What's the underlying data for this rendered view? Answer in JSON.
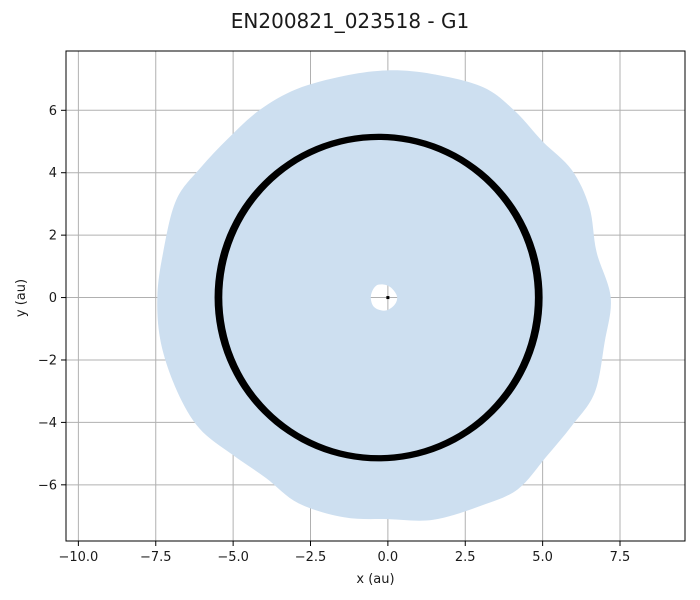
{
  "chart_data": {
    "type": "scatter",
    "title": "EN200821_023518 - G1",
    "xlabel": "x (au)",
    "ylabel": "y (au)",
    "xlim": [
      -10.4,
      9.6
    ],
    "ylim": [
      -7.8,
      7.9
    ],
    "x_ticks": [
      -10.0,
      -7.5,
      -5.0,
      -2.5,
      0.0,
      2.5,
      5.0,
      7.5
    ],
    "y_ticks": [
      -6,
      -4,
      -2,
      0,
      2,
      4,
      6
    ],
    "x_tick_labels": [
      "−10.0",
      "−7.5",
      "−5.0",
      "−2.5",
      "0.0",
      "2.5",
      "5.0",
      "7.5"
    ],
    "y_tick_labels": [
      "−6",
      "−4",
      "−2",
      "0",
      "2",
      "4",
      "6"
    ],
    "grid": true,
    "colors": {
      "disk": "#cddff0",
      "orbit": "#000000",
      "grid": "#b0b0b0"
    },
    "series": [
      {
        "kind": "scattered-disk",
        "color": "#cddff0",
        "boundary": [
          [
            7.2,
            0.0
          ],
          [
            6.74,
            1.47
          ],
          [
            6.51,
            2.9
          ],
          [
            5.94,
            4.09
          ],
          [
            5.0,
            5.0
          ],
          [
            4.1,
            5.98
          ],
          [
            3.08,
            6.74
          ],
          [
            1.45,
            7.16
          ],
          [
            0.0,
            7.28
          ],
          [
            -1.43,
            7.1
          ],
          [
            -2.95,
            6.68
          ],
          [
            -4.13,
            6.02
          ],
          [
            -5.13,
            5.13
          ],
          [
            -6.06,
            4.15
          ],
          [
            -6.84,
            3.12
          ],
          [
            -7.26,
            1.45
          ],
          [
            -7.45,
            0.0
          ],
          [
            -7.33,
            -1.47
          ],
          [
            -6.81,
            -3.0
          ],
          [
            -6.09,
            -4.19
          ],
          [
            -5.03,
            -5.03
          ],
          [
            -3.94,
            -5.78
          ],
          [
            -2.89,
            -6.59
          ],
          [
            -1.42,
            -7.04
          ],
          [
            0.0,
            -7.1
          ],
          [
            1.47,
            -7.12
          ],
          [
            3.04,
            -6.66
          ],
          [
            4.2,
            -6.14
          ],
          [
            5.11,
            -5.11
          ],
          [
            5.95,
            -4.1
          ],
          [
            6.68,
            -3.05
          ],
          [
            7.0,
            -1.45
          ]
        ],
        "inner_hole_boundary": [
          [
            0.3,
            0.0
          ],
          [
            0.18,
            0.24
          ],
          [
            -0.05,
            0.4
          ],
          [
            -0.38,
            0.38
          ],
          [
            -0.55,
            0.05
          ],
          [
            -0.45,
            -0.3
          ],
          [
            -0.1,
            -0.42
          ],
          [
            0.2,
            -0.25
          ]
        ]
      },
      {
        "kind": "orbit-band",
        "color": "#000000",
        "center": [
          -0.3,
          0.0
        ],
        "rx_outer": 5.3,
        "rx_inner": 5.05,
        "ry_outer": 5.25,
        "ry_inner": 5.05
      },
      {
        "kind": "central-point",
        "color": "#000000",
        "x": 0.0,
        "y": 0.0
      }
    ]
  }
}
